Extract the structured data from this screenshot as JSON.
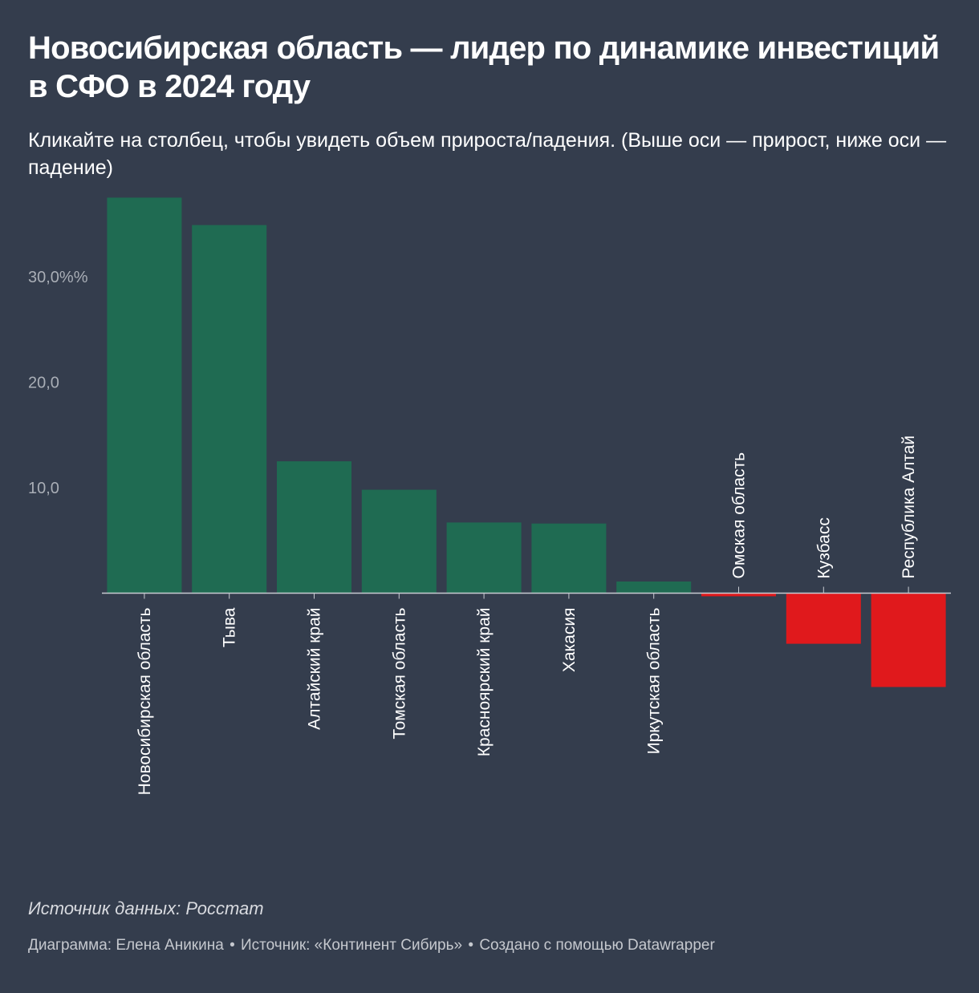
{
  "header": {
    "title": "Новосибирская область — лидер по динамике инвестиций в СФО в 2024 году",
    "subtitle": "Кликайте на столбец, чтобы увидеть объем прироста/падения. (Выше оси — прирост, ниже оси — падение)"
  },
  "colors": {
    "background": "#343d4d",
    "positive": "#1f6b52",
    "negative": "#e0191c",
    "axis": "#c8ccd2",
    "tick_text": "#a9aeb6"
  },
  "chart_data": {
    "type": "bar",
    "title": "Новосибирская область — лидер по динамике инвестиций в СФО в 2024 году",
    "xlabel": "",
    "ylabel": "",
    "ylim": [
      -9,
      37.5
    ],
    "y_ticks": [
      10,
      20,
      30
    ],
    "y_tick_labels": [
      "10,0",
      "20,0",
      "30,0%%"
    ],
    "grid": false,
    "categories": [
      "Новосибирская область",
      "Тыва",
      "Алтайский край",
      "Томская область",
      "Красноярский край",
      "Хакасия",
      "Иркутская область",
      "Омская область",
      "Кузбасс",
      "Республика Алтай"
    ],
    "values": [
      37.5,
      34.9,
      12.5,
      9.8,
      6.7,
      6.6,
      1.1,
      -0.3,
      -4.8,
      -8.9
    ]
  },
  "footer": {
    "notes": "Источник данных: Росстат",
    "byline": "Диаграмма: Елена Аникина",
    "source": "Источник: «Континент Сибирь»",
    "credit": "Создано с помощью Datawrapper",
    "separator": "•"
  }
}
